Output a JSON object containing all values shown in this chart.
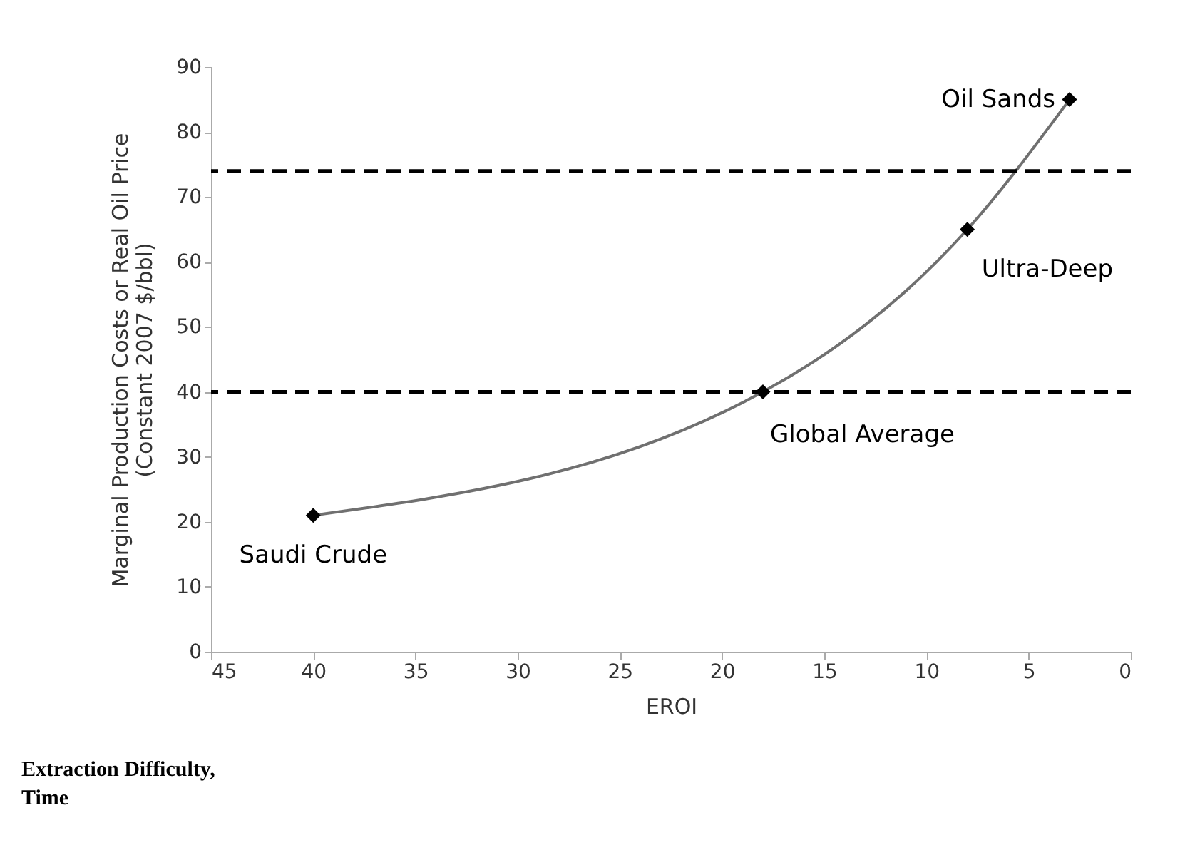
{
  "chart_data": {
    "type": "line",
    "xlabel": "EROI",
    "ylabel": "Marginal Production Costs or Real Oil Price\n(Constant 2007 $/bbl)",
    "x": [
      40,
      18,
      8,
      3
    ],
    "series": [
      {
        "color": "#707070",
        "values": [
          21,
          40,
          65,
          85
        ]
      }
    ],
    "marker": "diamond",
    "line_style": "solid",
    "xlim": [
      45,
      0
    ],
    "xticks": [
      45,
      40,
      35,
      30,
      25,
      20,
      15,
      10,
      5,
      0
    ],
    "ylim": [
      0,
      90
    ],
    "yticks": [
      0,
      10,
      20,
      30,
      40,
      50,
      60,
      70,
      80,
      90
    ],
    "grid": false,
    "ref_lines": [
      {
        "axis": "y",
        "value": 74,
        "color": "#000000",
        "line_style": "dashed"
      },
      {
        "axis": "y",
        "value": 40,
        "color": "#000000",
        "line_style": "dashed"
      }
    ],
    "annotations": [
      {
        "text": "Saudi Crude",
        "x": 40,
        "y": 21
      },
      {
        "text": "Global Average",
        "x": 18,
        "y": 40
      },
      {
        "text": "Ultra-Deep",
        "x": 8,
        "y": 65
      },
      {
        "text": "Oil Sands",
        "x": 3,
        "y": 85
      },
      "Extraction  Difficulty,\nTime"
    ]
  }
}
